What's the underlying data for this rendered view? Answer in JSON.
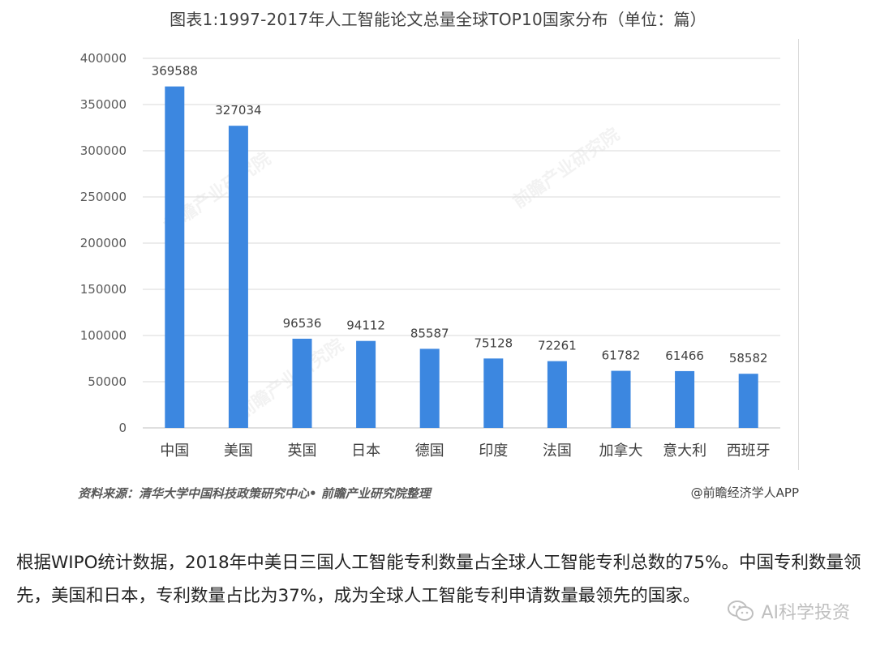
{
  "header": {
    "title": "图表1:1997-2017年人工智能论文总量全球TOP10国家分布（单位：篇）"
  },
  "chart_data": {
    "type": "bar",
    "title": "图表1:1997-2017年人工智能论文总量全球TOP10国家分布（单位：篇）",
    "categories": [
      "中国",
      "美国",
      "英国",
      "日本",
      "德国",
      "印度",
      "法国",
      "加拿大",
      "意大利",
      "西班牙"
    ],
    "values": [
      369588,
      327034,
      96536,
      94112,
      85587,
      75128,
      72261,
      61782,
      61466,
      58582
    ],
    "yticks": [
      "400000",
      "350000",
      "300000",
      "250000",
      "200000",
      "150000",
      "100000",
      "50000",
      "0"
    ],
    "ylim": [
      0,
      400000
    ],
    "grid": true,
    "bar_color": "#3c87e0"
  },
  "footer": {
    "source": "资料来源：清华大学中国科技政策研究中心• 前瞻产业研究院整理",
    "credit": "@前瞻经济学人APP"
  },
  "watermark": {
    "text": "前瞻产业研究院"
  },
  "paragraph": "根据WIPO统计数据，2018年中美日三国人工智能专利数量占全球人工智能专利总数的75%。中国专利数量领先，美国和日本，专利数量占比为37%，成为全球人工智能专利申请数量最领先的国家。",
  "badge": {
    "text": "AI科学投资",
    "icon": "wechat-icon"
  }
}
